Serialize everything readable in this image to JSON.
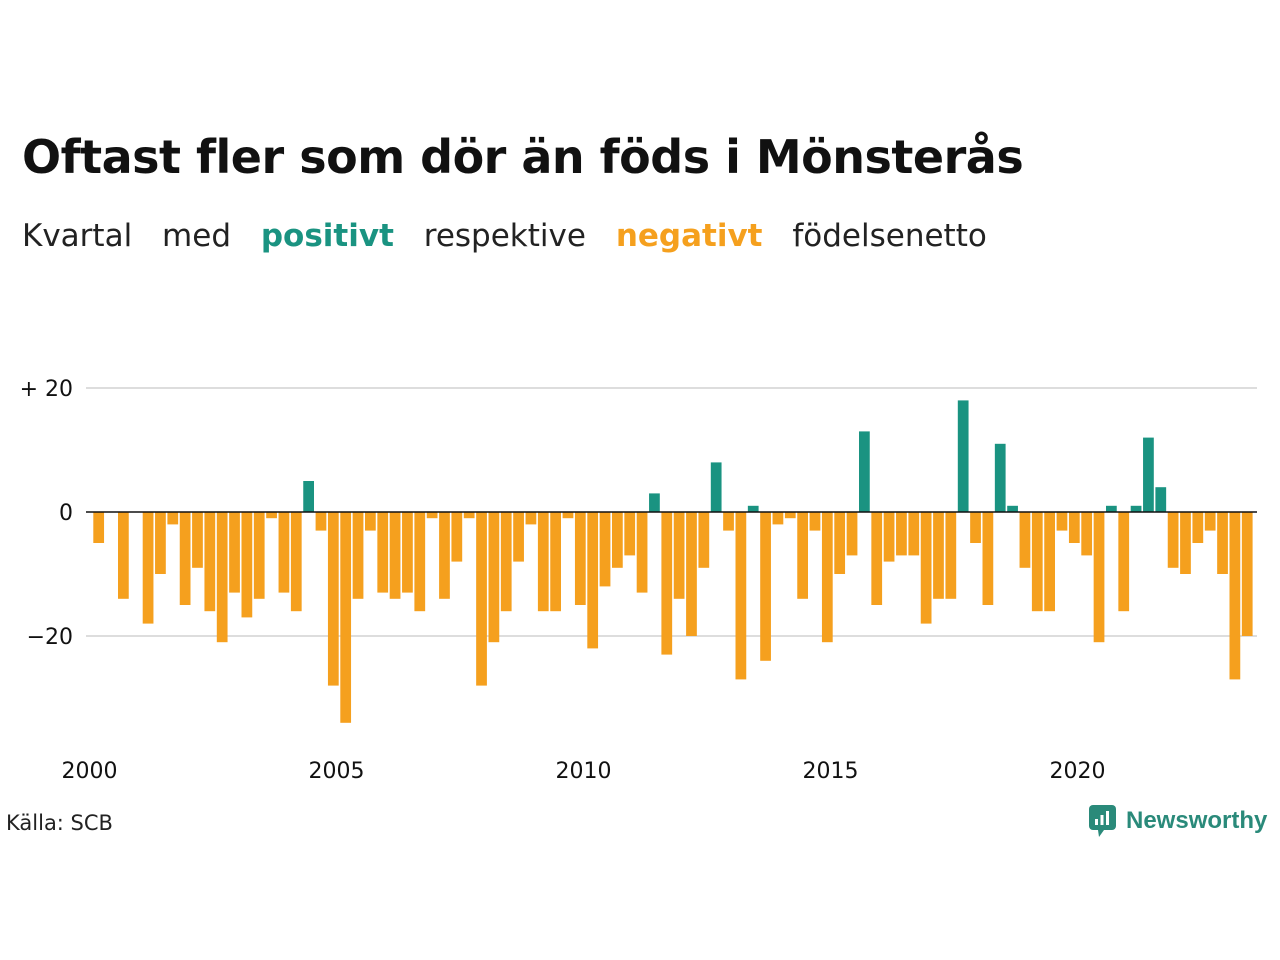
{
  "title": "Oftast fler som dör än föds i Mönsterås",
  "subtitle": {
    "part1": "Kvartal",
    "part2": "med",
    "positive": "positivt",
    "part3": "respektive",
    "negative": "negativt",
    "part4": "födelsenetto"
  },
  "source": "Källa: SCB",
  "brand": "Newsworthy",
  "colors": {
    "positive": "#1a9381",
    "negative": "#f5a01e",
    "grid": "#dddddd",
    "axis": "#111111"
  },
  "chart_data": {
    "type": "bar",
    "x_ticks": [
      "2000",
      "2005",
      "2010",
      "2015",
      "2020"
    ],
    "y_ticks": [
      {
        "value": 20,
        "label": "+ 20"
      },
      {
        "value": 0,
        "label": "0"
      },
      {
        "value": -20,
        "label": "−20"
      }
    ],
    "ylim": [
      -37,
      37
    ],
    "start_year": 2000,
    "values": [
      -5,
      0,
      -14,
      0,
      -18,
      -10,
      -2,
      -15,
      -9,
      -16,
      -21,
      -13,
      -17,
      -14,
      -1,
      -13,
      -16,
      5,
      -3,
      -28,
      -34,
      -14,
      -3,
      -13,
      -14,
      -13,
      -16,
      -1,
      -14,
      -8,
      -1,
      -28,
      -21,
      -16,
      -8,
      -2,
      -16,
      -16,
      -1,
      -15,
      -22,
      -12,
      -9,
      -7,
      -13,
      3,
      -23,
      -14,
      -20,
      -9,
      8,
      -3,
      -27,
      1,
      -24,
      -2,
      -1,
      -14,
      -3,
      -21,
      -10,
      -7,
      13,
      -15,
      -8,
      -7,
      -7,
      -18,
      -14,
      -14,
      18,
      -5,
      -15,
      11,
      1,
      -9,
      -16,
      -16,
      -3,
      -5,
      -7,
      -21,
      1,
      -16,
      1,
      12,
      4,
      -9,
      -10,
      -5,
      -3,
      -10,
      -27,
      -20
    ]
  }
}
